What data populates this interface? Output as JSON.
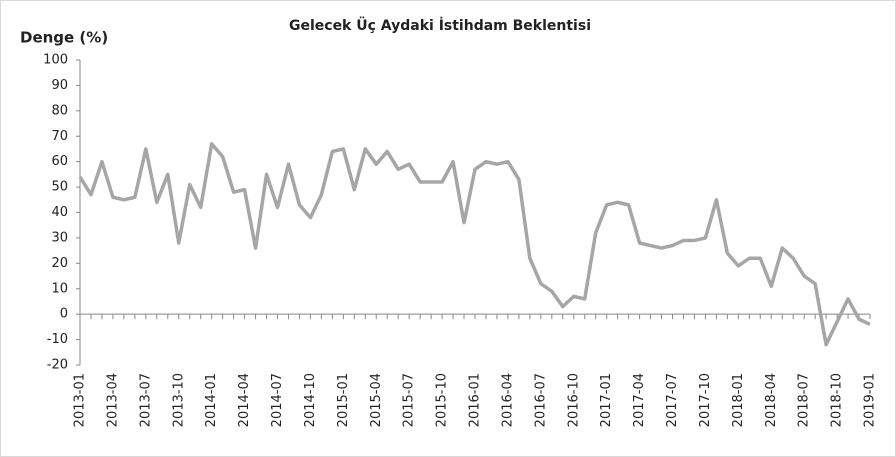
{
  "chart_data": {
    "type": "line",
    "title": "Gelecek Üç Aydaki İstihdam Beklentisi",
    "y_label": "Denge (%)",
    "categories": [
      "2013-01",
      null,
      null,
      "2013-04",
      null,
      null,
      "2013-07",
      null,
      null,
      "2013-10",
      null,
      null,
      "2014-01",
      null,
      null,
      "2014-04",
      null,
      null,
      "2014-07",
      null,
      null,
      "2014-10",
      null,
      null,
      "2015-01",
      null,
      null,
      "2015-04",
      null,
      null,
      "2015-07",
      null,
      null,
      "2015-10",
      null,
      null,
      "2016-01",
      null,
      null,
      "2016-04",
      null,
      null,
      "2016-07",
      null,
      null,
      "2016-10",
      null,
      null,
      "2017-01",
      null,
      null,
      "2017-04",
      null,
      null,
      "2017-07",
      null,
      null,
      "2017-10",
      null,
      null,
      "2018-01",
      null,
      null,
      "2018-04",
      null,
      null,
      "2018-07",
      null,
      null,
      "2018-10",
      null,
      null,
      "2019-01"
    ],
    "series": [
      {
        "color": "#a6a6a6",
        "values": [
          54,
          47,
          60,
          46,
          45,
          46,
          65,
          44,
          55,
          28,
          51,
          42,
          67,
          62,
          48,
          49,
          26,
          55,
          42,
          59,
          43,
          38,
          47,
          64,
          65,
          49,
          65,
          59,
          64,
          57,
          59,
          52,
          52,
          52,
          60,
          36,
          57,
          60,
          59,
          60,
          53,
          22,
          12,
          9,
          3,
          7,
          6,
          32,
          43,
          44,
          43,
          28,
          27,
          26,
          27,
          29,
          29,
          30,
          45,
          24,
          19,
          22,
          22,
          11,
          26,
          22,
          15,
          12,
          -12,
          -3,
          6,
          -2,
          -4
        ]
      }
    ],
    "ylim": [
      -20,
      100
    ],
    "yticks": [
      -20,
      -10,
      0,
      10,
      20,
      30,
      40,
      50,
      60,
      70,
      80,
      90,
      100
    ]
  }
}
